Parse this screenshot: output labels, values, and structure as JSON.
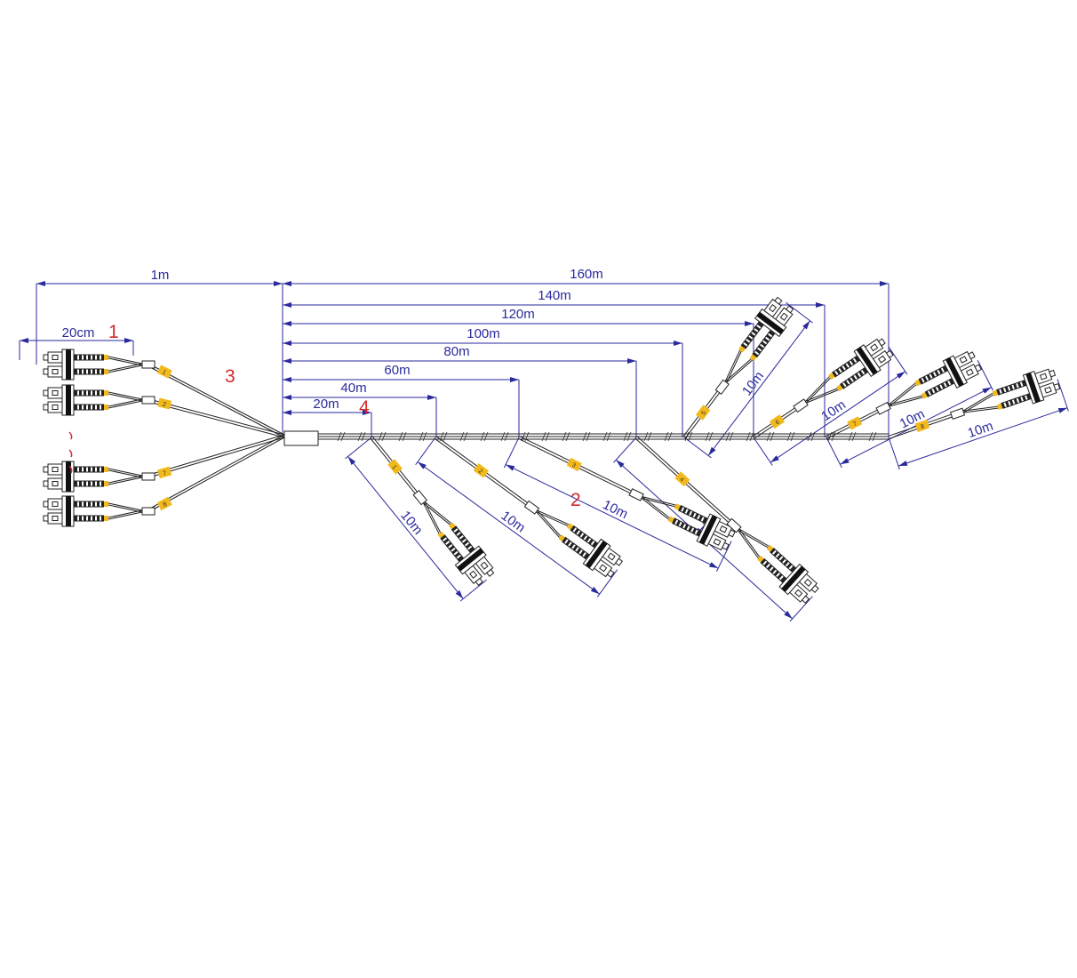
{
  "colors": {
    "dimension": "#2a2a9c",
    "annotation": "#d42a2a",
    "tag": "#f2b91c",
    "cable": "#222222"
  },
  "dimensions": {
    "overall_fanout": "1m",
    "fanout_breakout": "20cm",
    "trunk": [
      "20m",
      "40m",
      "60m",
      "80m",
      "100m",
      "120m",
      "140m",
      "160m"
    ],
    "branch_length": "10m"
  },
  "left_tags": [
    "1",
    "2",
    "7",
    "8"
  ],
  "branch_tags": [
    "1",
    "2",
    "3",
    "4",
    "5",
    "6",
    "7",
    "8"
  ],
  "annotations": {
    "a1": "1",
    "a2": "2",
    "a3": "3",
    "a4": "4"
  }
}
